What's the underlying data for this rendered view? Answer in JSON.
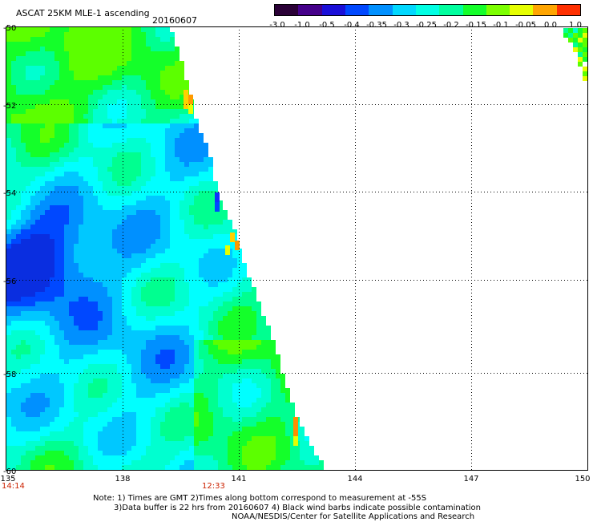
{
  "header": {
    "title": "ASCAT 25KM MLE-1 ascending",
    "date": "20160607"
  },
  "colorbar": {
    "labels": [
      "-3.0",
      "-1.0",
      "-0.5",
      "-0.4",
      "-0.35",
      "-0.3",
      "-0.25",
      "-0.2",
      "-0.15",
      "-0.1",
      "-0.05",
      "0.0",
      "1.0"
    ],
    "colors": [
      "#2a0036",
      "#45008a",
      "#1a0fd8",
      "#0048ff",
      "#0090ff",
      "#00d8ff",
      "#00ffe4",
      "#00ff9e",
      "#14ff2a",
      "#7cff00",
      "#e6ff00",
      "#ffa500",
      "#ff3000"
    ]
  },
  "axes": {
    "lat_labels": [
      "-50",
      "-52",
      "-54",
      "-56",
      "-58",
      "-60"
    ],
    "lon_labels": [
      "135",
      "138",
      "141",
      "144",
      "147",
      "150"
    ]
  },
  "times": {
    "left": "14:14",
    "mid": "12:33"
  },
  "notes": {
    "line1": "Note: 1) Times are GMT 2)Times along bottom correspond to measurement at -55S",
    "line2": "3)Data buffer is 22 hrs from 20160607 4) Black wind barbs indicate possible contamination",
    "line3": "NOAA/NESDIS/Center for Satellite Applications and Research"
  }
}
